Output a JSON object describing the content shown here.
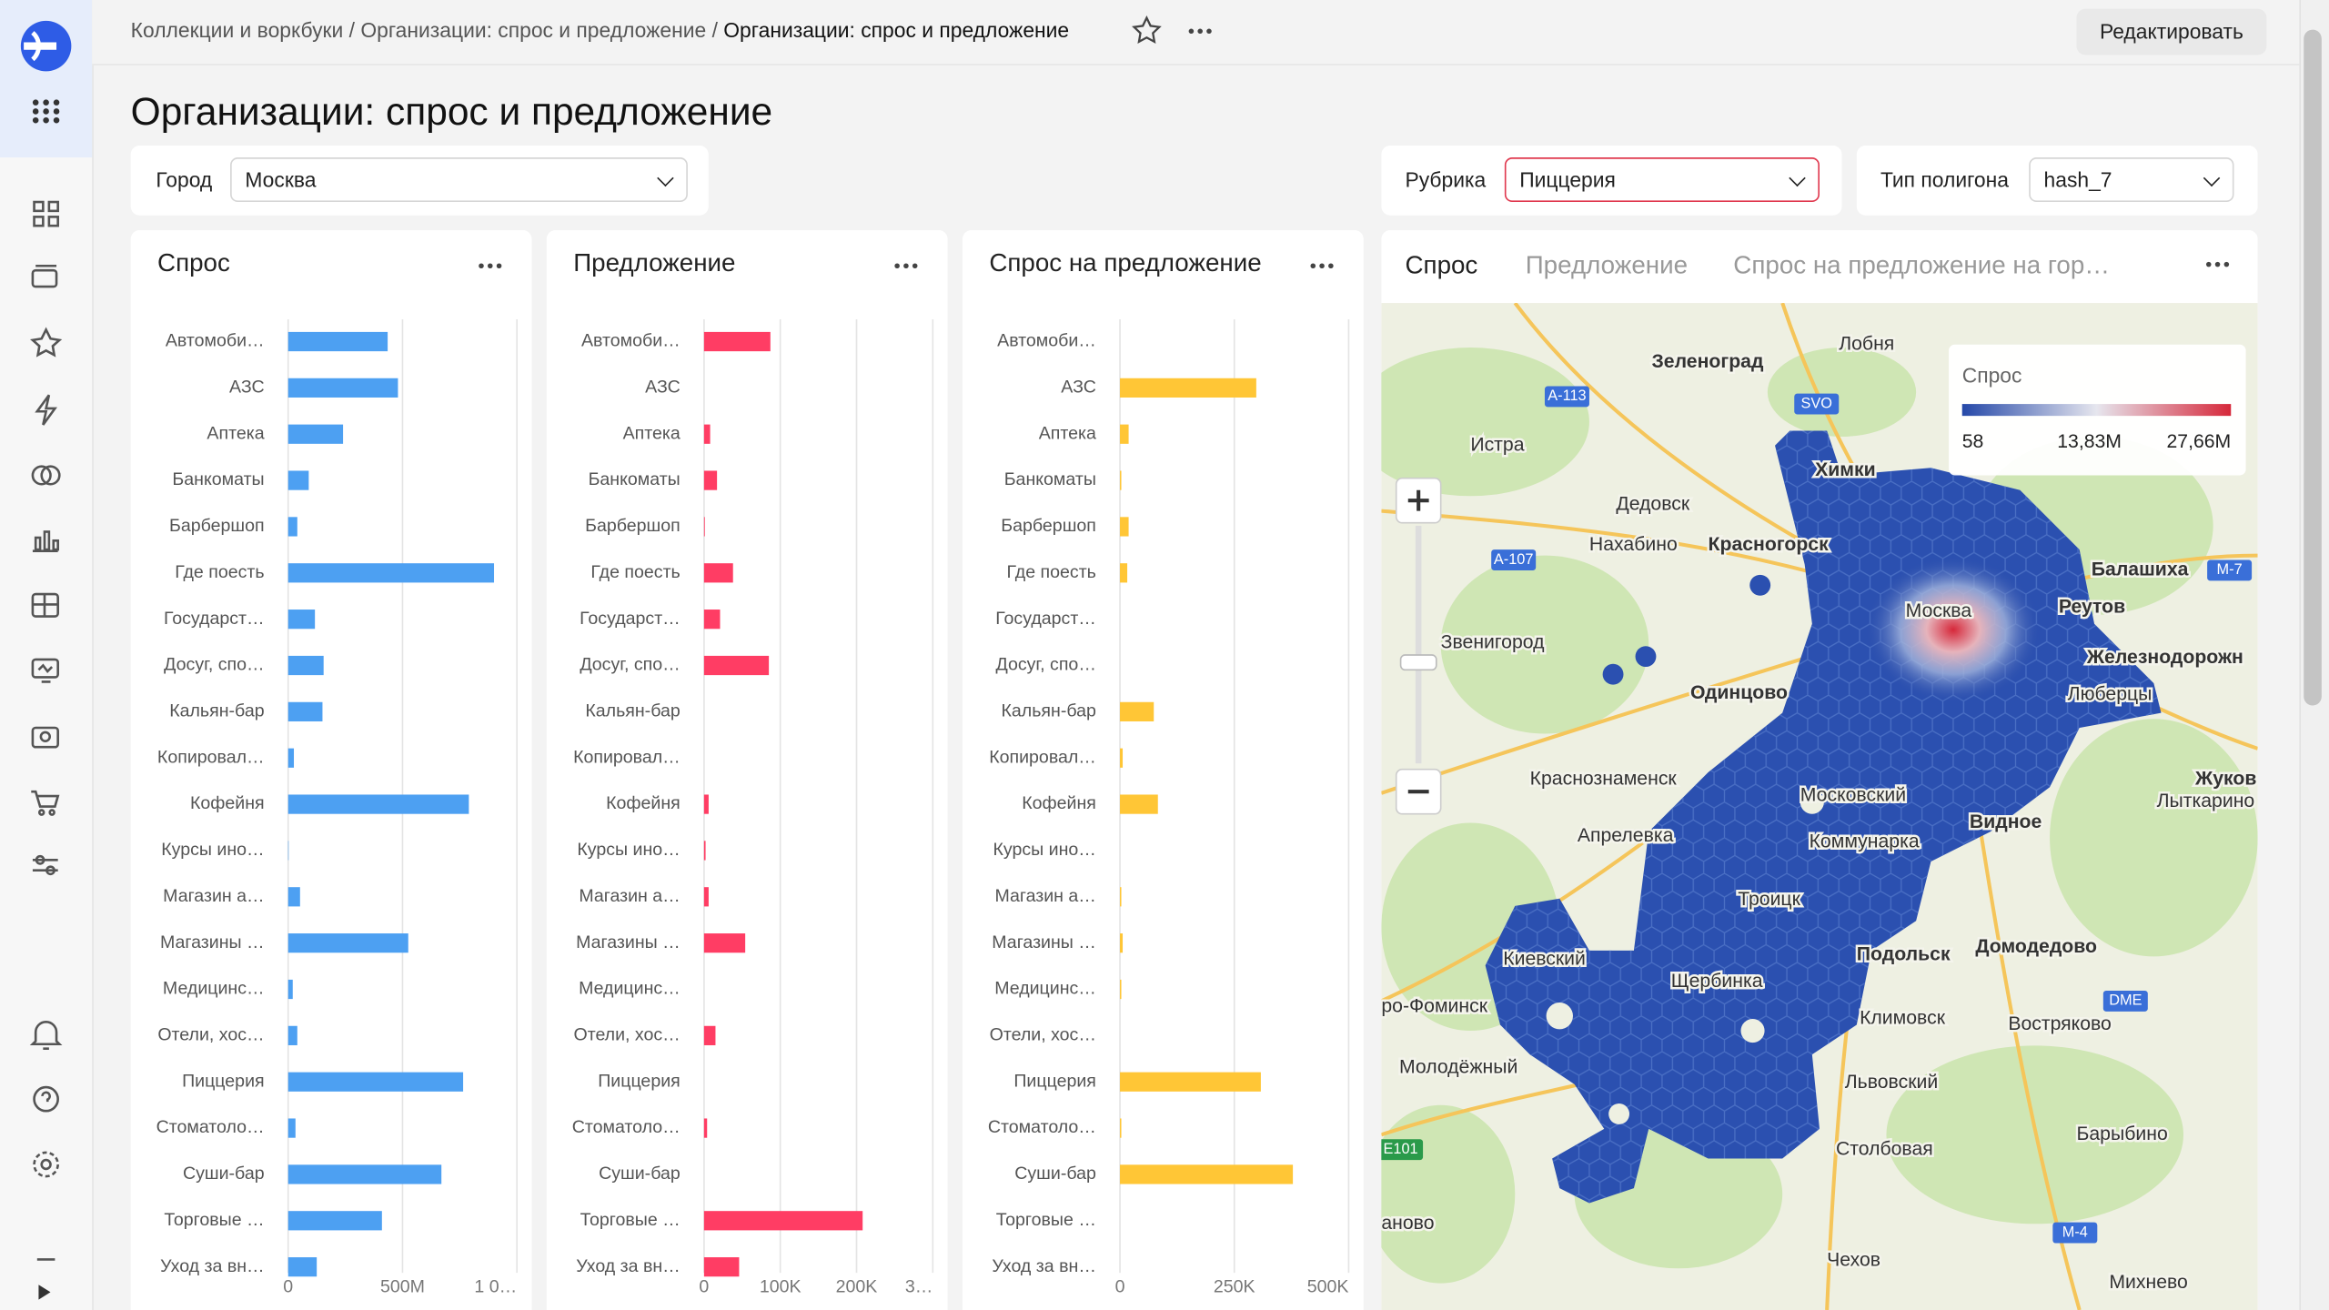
{
  "breadcrumbs": [
    "Коллекции и воркбуки",
    "Организации: спрос и предложение",
    "Организации: спрос и предложение"
  ],
  "breadcrumb_separator": "/",
  "edit_button": "Редактировать",
  "page_title": "Организации: спрос и предложение",
  "filters": [
    {
      "label": "Город",
      "value": "Москва"
    },
    {
      "label": "Рубрика",
      "value": "Пиццерия"
    },
    {
      "label": "Тип полигона",
      "value": "hash_7"
    }
  ],
  "charts": [
    {
      "type": "bar",
      "orientation": "horizontal",
      "title": "Спрос",
      "color": "#4da0f2",
      "grid": true,
      "categories": [
        "Автомоби…",
        "АЗС",
        "Аптека",
        "Банкоматы",
        "Барбершоп",
        "Где поесть",
        "Государст…",
        "Досуг, спо…",
        "Кальян-бар",
        "Копировал…",
        "Кофейня",
        "Курсы ино…",
        "Магазин а…",
        "Магазины …",
        "Медицинс…",
        "Отели, хос…",
        "Пиццерия",
        "Стоматоло…",
        "Суши-бар",
        "Торговые …",
        "Уход за вн…"
      ],
      "values": [
        435000000,
        480000000,
        240000000,
        90000000,
        40000000,
        900000000,
        117000000,
        155000000,
        150000000,
        25000000,
        790000000,
        2000000,
        52000000,
        525000000,
        20000000,
        40000000,
        765000000,
        32000000,
        670000000,
        410000000,
        125000000
      ],
      "xlim": [
        0,
        1000000000
      ],
      "xticks": [
        0,
        {
          "value": 500000000,
          "label": "500M"
        },
        {
          "value": 1000000000,
          "label": "1 0…"
        }
      ]
    },
    {
      "type": "bar",
      "orientation": "horizontal",
      "title": "Предложение",
      "color": "#ff3d64",
      "grid": true,
      "categories": [
        "Автомоби…",
        "АЗС",
        "Аптека",
        "Банкоматы",
        "Барбершоп",
        "Где поесть",
        "Государст…",
        "Досуг, спо…",
        "Кальян-бар",
        "Копировал…",
        "Кофейня",
        "Курсы ино…",
        "Магазин а…",
        "Магазины …",
        "Медицинс…",
        "Отели, хос…",
        "Пиццерия",
        "Стоматоло…",
        "Суши-бар",
        "Торговые …",
        "Уход за вн…"
      ],
      "values": [
        87000,
        0,
        8000,
        17000,
        1000,
        38000,
        21000,
        85000,
        0,
        0,
        6000,
        2000,
        6000,
        54000,
        0,
        15000,
        0,
        4000,
        0,
        208000,
        46000
      ],
      "xlim": [
        0,
        300000
      ],
      "xticks": [
        0,
        {
          "value": 100000,
          "label": "100K"
        },
        {
          "value": 200000,
          "label": "200K"
        },
        {
          "value": 300000,
          "label": "3…"
        }
      ]
    },
    {
      "type": "bar",
      "orientation": "horizontal",
      "title": "Спрос на предложение",
      "color": "#ffc636",
      "grid": true,
      "categories": [
        "Автомоби…",
        "АЗС",
        "Аптека",
        "Банкоматы",
        "Барбершоп",
        "Где поесть",
        "Государст…",
        "Досуг, спо…",
        "Кальян-бар",
        "Копировал…",
        "Кофейня",
        "Курсы ино…",
        "Магазин а…",
        "Магазины …",
        "Медицинс…",
        "Отели, хос…",
        "Пиццерия",
        "Стоматоло…",
        "Суши-бар",
        "Торговые …",
        "Уход за вн…"
      ],
      "values": [
        0,
        298000,
        19000,
        3000,
        19000,
        16000,
        0,
        0,
        74000,
        6000,
        83000,
        0,
        3000,
        6000,
        3000,
        0,
        308000,
        3000,
        378000,
        0,
        0
      ],
      "xlim": [
        0,
        500000
      ],
      "xticks": [
        0,
        {
          "value": 250000,
          "label": "250K"
        },
        {
          "value": 500000,
          "label": "500K"
        }
      ]
    }
  ],
  "map": {
    "tabs": [
      "Спрос",
      "Предложение",
      "Спрос на предложение на гор…"
    ],
    "legend": {
      "title": "Спрос",
      "labels": [
        "58",
        "13,83M",
        "27,66M"
      ],
      "colors": [
        "#2548a8",
        "#e6e6ee",
        "#d6283a"
      ]
    },
    "places": [
      "Зеленоград",
      "Лобня",
      "Истра",
      "Химки",
      "Дедовск",
      "Нахабино",
      "Красногорск",
      "Балашиха",
      "Реутов",
      "Москва",
      "Звенигород",
      "Одинцово",
      "Железнодорожн",
      "Люберцы",
      "Краснознаменск",
      "Московский",
      "Видное",
      "Жуков",
      "Лыткарино",
      "Апрелевка",
      "Коммунарка",
      "Троицк",
      "Подольск",
      "Домодедово",
      "Киевский",
      "Щербинка",
      "Климовск",
      "ро-Фоминск",
      "Молодёжный",
      "Востряково",
      "Львовский",
      "Столбовая",
      "Барыбино",
      "Чехов",
      "Михнево",
      "аново"
    ],
    "road_signs": [
      "A-113",
      "A-107",
      "M-7",
      "E101",
      "M-4",
      "SVO",
      "DME"
    ]
  }
}
